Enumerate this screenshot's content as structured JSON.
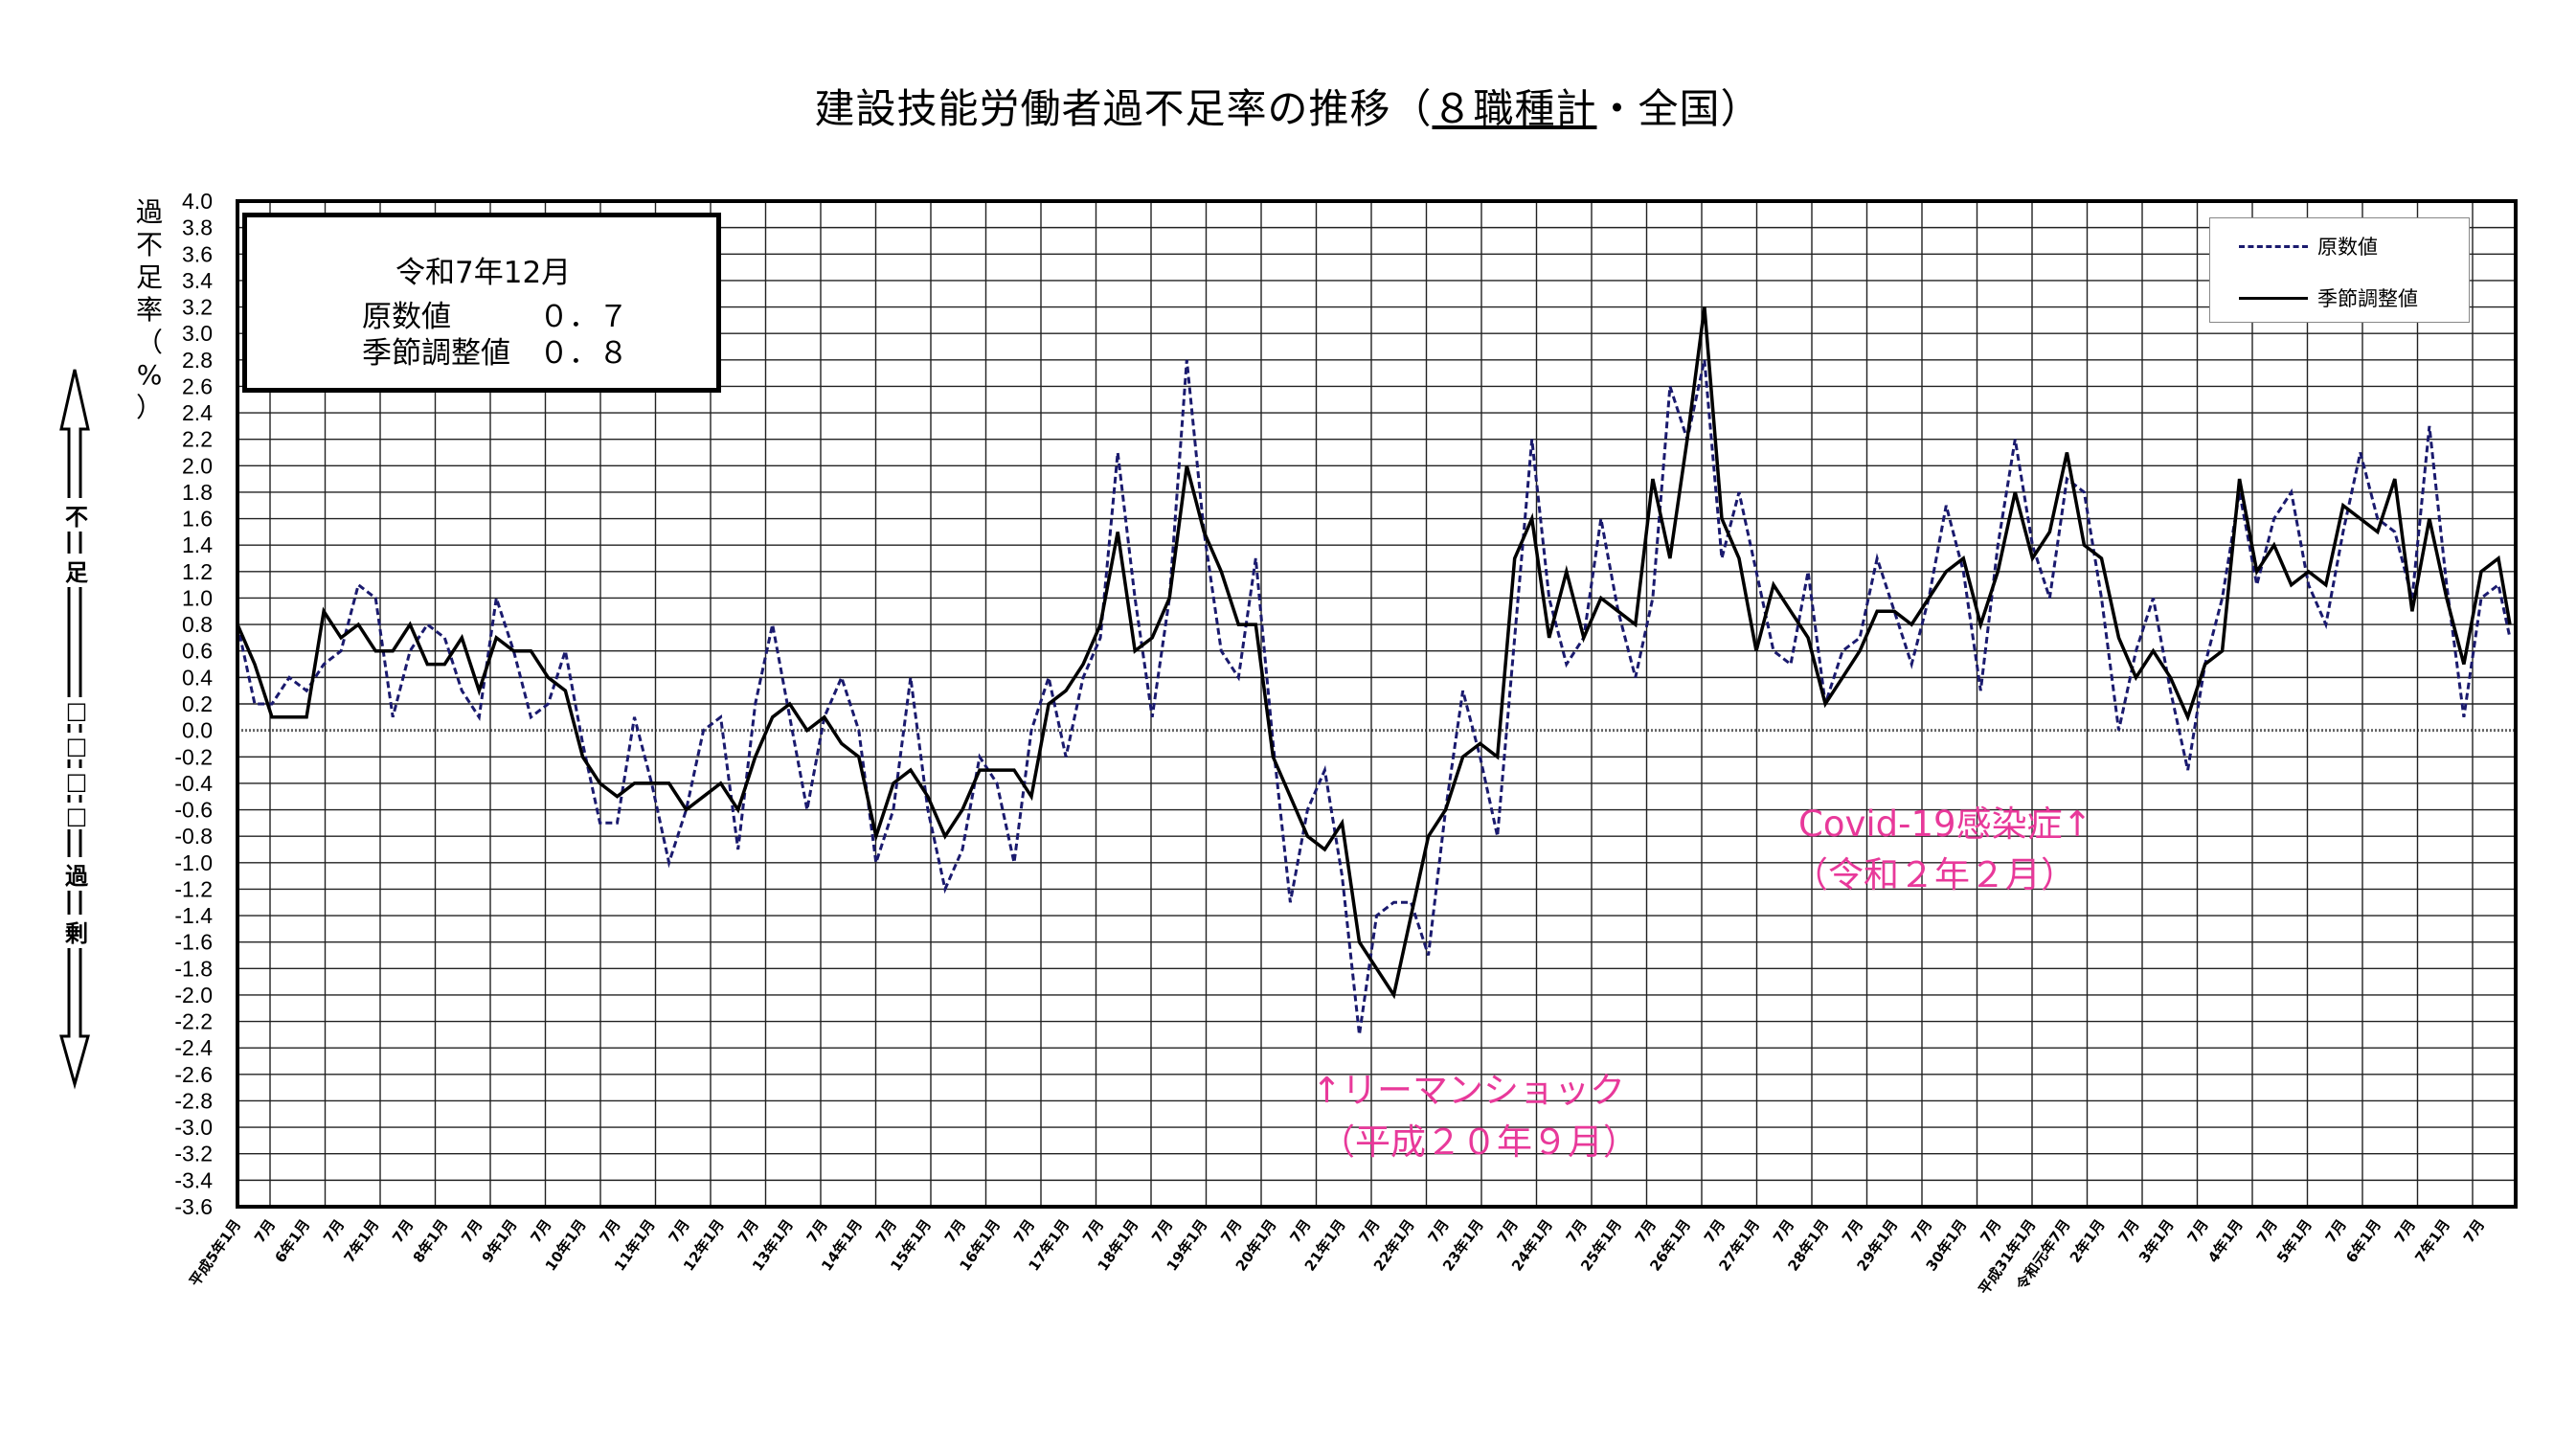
{
  "title": {
    "main": "建設技能労働者過不足率の推移（",
    "underlined": "８職種計",
    "tail": "・全国）"
  },
  "y_axis_title": [
    "過",
    "不",
    "足",
    "率",
    "（",
    "%",
    "）"
  ],
  "side_arrow": {
    "top_label": [
      "不",
      "足"
    ],
    "middle": [
      "□",
      "□",
      "□",
      "□"
    ],
    "bottom_label": [
      "過",
      "剰"
    ]
  },
  "info_box": {
    "date": "令和7年12月",
    "raw_label": "原数値",
    "raw_value": "０．７",
    "sa_label": "季節調整値",
    "sa_value": "０．８"
  },
  "annotations": {
    "covid_line1": "Covid-19感染症↑",
    "covid_line2": "（令和２年２月）",
    "lehman_line1": "↑リーマンショック",
    "lehman_line2": "（平成２０年９月）"
  },
  "colors": {
    "raw": "#1a1a6e",
    "sa": "#000000",
    "annotation": "#e8399a"
  },
  "chart_data": {
    "type": "line",
    "title": "建設技能労働者過不足率の推移（８職種計・全国）",
    "ylabel": "過不足率（%）",
    "ylim": [
      -3.6,
      4.0
    ],
    "ytick_step": 0.2,
    "grid": true,
    "legend_position": "top-right",
    "x_start": "1993-01",
    "x_end": "2025-12",
    "step_months": 3,
    "xtick_labels": [
      "平成5年1月",
      "7月",
      "6年1月",
      "7月",
      "7年1月",
      "7月",
      "8年1月",
      "7月",
      "9年1月",
      "7月",
      "10年1月",
      "7月",
      "11年1月",
      "7月",
      "12年1月",
      "7月",
      "13年1月",
      "7月",
      "14年1月",
      "7月",
      "15年1月",
      "7月",
      "16年1月",
      "7月",
      "17年1月",
      "7月",
      "18年1月",
      "7月",
      "19年1月",
      "7月",
      "20年1月",
      "7月",
      "21年1月",
      "7月",
      "22年1月",
      "7月",
      "23年1月",
      "7月",
      "24年1月",
      "7月",
      "25年1月",
      "7月",
      "26年1月",
      "7月",
      "27年1月",
      "7月",
      "28年1月",
      "7月",
      "29年1月",
      "7月",
      "30年1月",
      "7月",
      "平成31年1月",
      "令和元年7月",
      "2年1月",
      "7月",
      "3年1月",
      "7月",
      "4年1月",
      "7月",
      "5年1月",
      "7月",
      "6年1月",
      "7月",
      "7年1月",
      "7月"
    ],
    "series": [
      {
        "name": "原数値",
        "style": "dashed",
        "latest": 0.7,
        "values": [
          0.8,
          0.2,
          0.2,
          0.4,
          0.3,
          0.5,
          0.6,
          1.1,
          1.0,
          0.1,
          0.6,
          0.8,
          0.7,
          0.3,
          0.1,
          1.0,
          0.6,
          0.1,
          0.2,
          0.6,
          -0.1,
          -0.7,
          -0.7,
          0.1,
          -0.4,
          -1.0,
          -0.6,
          0.0,
          0.1,
          -0.9,
          0.2,
          0.8,
          0.1,
          -0.6,
          0.1,
          0.4,
          0.0,
          -1.0,
          -0.6,
          0.4,
          -0.6,
          -1.2,
          -0.9,
          -0.2,
          -0.4,
          -1.0,
          0.0,
          0.4,
          -0.2,
          0.4,
          0.7,
          2.1,
          1.0,
          0.1,
          1.0,
          2.8,
          1.5,
          0.6,
          0.4,
          1.3,
          -0.1,
          -1.3,
          -0.6,
          -0.3,
          -1.1,
          -2.3,
          -1.4,
          -1.3,
          -1.3,
          -1.7,
          -0.6,
          0.3,
          -0.2,
          -0.8,
          0.7,
          2.2,
          1.0,
          0.5,
          0.7,
          1.6,
          0.9,
          0.4,
          1.0,
          2.6,
          2.2,
          2.8,
          1.3,
          1.8,
          1.2,
          0.6,
          0.5,
          1.2,
          0.2,
          0.6,
          0.7,
          1.3,
          0.9,
          0.5,
          1.0,
          1.7,
          1.2,
          0.3,
          1.4,
          2.2,
          1.4,
          1.0,
          1.9,
          1.8,
          1.0,
          0.0,
          0.6,
          1.0,
          0.3,
          -0.3,
          0.5,
          1.0,
          1.8,
          1.1,
          1.6,
          1.8,
          1.1,
          0.8,
          1.5,
          2.1,
          1.6,
          1.5,
          1.0,
          2.3,
          1.1,
          0.1,
          1.0,
          1.1
        ]
      },
      {
        "name": "季節調整値",
        "style": "solid",
        "latest": 0.8,
        "values": [
          0.8,
          0.5,
          0.1,
          0.1,
          0.1,
          0.9,
          0.7,
          0.8,
          0.6,
          0.6,
          0.8,
          0.5,
          0.5,
          0.7,
          0.3,
          0.7,
          0.6,
          0.6,
          0.4,
          0.3,
          -0.2,
          -0.4,
          -0.5,
          -0.4,
          -0.4,
          -0.4,
          -0.6,
          -0.5,
          -0.4,
          -0.6,
          -0.2,
          0.1,
          0.2,
          0.0,
          0.1,
          -0.1,
          -0.2,
          -0.8,
          -0.4,
          -0.3,
          -0.5,
          -0.8,
          -0.6,
          -0.3,
          -0.3,
          -0.3,
          -0.5,
          0.2,
          0.3,
          0.5,
          0.8,
          1.5,
          0.6,
          0.7,
          1.0,
          2.0,
          1.5,
          1.2,
          0.8,
          0.8,
          -0.2,
          -0.5,
          -0.8,
          -0.9,
          -0.7,
          -1.6,
          -1.8,
          -2.0,
          -1.4,
          -0.8,
          -0.6,
          -0.2,
          -0.1,
          -0.2,
          1.3,
          1.6,
          0.7,
          1.2,
          0.7,
          1.0,
          0.9,
          0.8,
          1.9,
          1.3,
          2.2,
          3.2,
          1.6,
          1.3,
          0.6,
          1.1,
          0.9,
          0.7,
          0.2,
          0.4,
          0.6,
          0.9,
          0.9,
          0.8,
          1.0,
          1.2,
          1.3,
          0.8,
          1.2,
          1.8,
          1.3,
          1.5,
          2.1,
          1.4,
          1.3,
          0.7,
          0.4,
          0.6,
          0.4,
          0.1,
          0.5,
          0.6,
          1.9,
          1.2,
          1.4,
          1.1,
          1.2,
          1.1,
          1.7,
          1.6,
          1.5,
          1.9,
          0.9,
          1.6,
          1.0,
          0.5,
          1.2,
          1.3
        ]
      }
    ]
  }
}
